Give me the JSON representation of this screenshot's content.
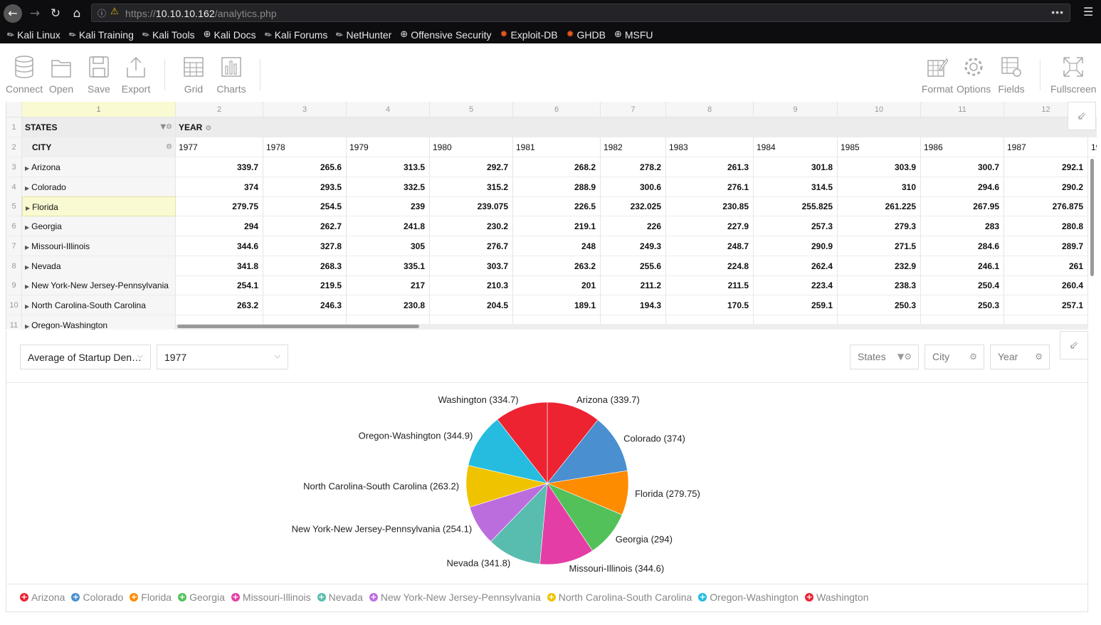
{
  "browser": {
    "url_prefix": "https://",
    "url_host": "10.10.10.162",
    "url_path": "/analytics.php",
    "bookmarks": [
      {
        "label": "Kali Linux",
        "icon": "kali-dragon-icon"
      },
      {
        "label": "Kali Training",
        "icon": "kali-dragon-icon"
      },
      {
        "label": "Kali Tools",
        "icon": "kali-dragon-icon"
      },
      {
        "label": "Kali Docs",
        "icon": "globe-icon"
      },
      {
        "label": "Kali Forums",
        "icon": "kali-dragon-icon"
      },
      {
        "label": "NetHunter",
        "icon": "kali-dragon-icon"
      },
      {
        "label": "Offensive Security",
        "icon": "globe-icon"
      },
      {
        "label": "Exploit-DB",
        "icon": "exploitdb-icon"
      },
      {
        "label": "GHDB",
        "icon": "exploitdb-icon"
      },
      {
        "label": "MSFU",
        "icon": "globe-icon"
      }
    ]
  },
  "toolbar": {
    "connect": "Connect",
    "open": "Open",
    "save": "Save",
    "export": "Export",
    "grid": "Grid",
    "charts": "Charts",
    "format": "Format",
    "options": "Options",
    "fields": "Fields",
    "fullscreen": "Fullscreen"
  },
  "grid": {
    "col_numbers": [
      "1",
      "2",
      "3",
      "4",
      "5",
      "6",
      "7",
      "8",
      "9",
      "10",
      "11",
      "12"
    ],
    "row_numbers": [
      "1",
      "2",
      "3",
      "4",
      "5",
      "6",
      "7",
      "8",
      "9",
      "10",
      "11"
    ],
    "states_header": "STATES",
    "year_header": "YEAR",
    "city_header": "CITY",
    "years": [
      "1977",
      "1978",
      "1979",
      "1980",
      "1981",
      "1982",
      "1983",
      "1984",
      "1985",
      "1986",
      "1987",
      "19"
    ],
    "rows": [
      {
        "label": "Arizona",
        "values": [
          "339.7",
          "265.6",
          "313.5",
          "292.7",
          "268.2",
          "278.2",
          "261.3",
          "301.8",
          "303.9",
          "300.7",
          "292.1"
        ]
      },
      {
        "label": "Colorado",
        "values": [
          "374",
          "293.5",
          "332.5",
          "315.2",
          "288.9",
          "300.6",
          "276.1",
          "314.5",
          "310",
          "294.6",
          "290.2"
        ]
      },
      {
        "label": "Florida",
        "values": [
          "279.75",
          "254.5",
          "239",
          "239.075",
          "226.5",
          "232.025",
          "230.85",
          "255.825",
          "261.225",
          "267.95",
          "276.875"
        ]
      },
      {
        "label": "Georgia",
        "values": [
          "294",
          "262.7",
          "241.8",
          "230.2",
          "219.1",
          "226",
          "227.9",
          "257.3",
          "279.3",
          "283",
          "280.8"
        ]
      },
      {
        "label": "Missouri-Illinois",
        "values": [
          "344.6",
          "327.8",
          "305",
          "276.7",
          "248",
          "249.3",
          "248.7",
          "290.9",
          "271.5",
          "284.6",
          "289.7"
        ]
      },
      {
        "label": "Nevada",
        "values": [
          "341.8",
          "268.3",
          "335.1",
          "303.7",
          "263.2",
          "255.6",
          "224.8",
          "262.4",
          "232.9",
          "246.1",
          "261"
        ]
      },
      {
        "label": "New York-New Jersey-Pennsylvania",
        "values": [
          "254.1",
          "219.5",
          "217",
          "210.3",
          "201",
          "211.2",
          "211.5",
          "223.4",
          "238.3",
          "250.4",
          "260.4"
        ]
      },
      {
        "label": "North Carolina-South Carolina",
        "values": [
          "263.2",
          "246.3",
          "230.8",
          "204.5",
          "189.1",
          "194.3",
          "170.5",
          "259.1",
          "250.3",
          "250.3",
          "257.1"
        ]
      },
      {
        "label": "Oregon-Washington",
        "values": []
      }
    ]
  },
  "chart_controls": {
    "measure_select": "Average of Startup Den…",
    "year_select": "1977",
    "states_btn": "States",
    "city_btn": "City",
    "year_btn": "Year"
  },
  "chart_data": {
    "type": "pie",
    "categories": [
      "Arizona",
      "Colorado",
      "Florida",
      "Georgia",
      "Missouri-Illinois",
      "Nevada",
      "New York-New Jersey-Pennsylvania",
      "North Carolina-South Carolina",
      "Oregon-Washington",
      "Washington"
    ],
    "values": [
      339.7,
      374,
      279.75,
      294,
      344.6,
      341.8,
      254.1,
      263.2,
      344.9,
      334.7
    ],
    "labels": [
      "Arizona (339.7)",
      "Colorado (374)",
      "Florida (279.75)",
      "Georgia (294)",
      "Missouri-Illinois (344.6)",
      "Nevada (341.8)",
      "New York-New Jersey-Pennsylvania (254.1)",
      "North Carolina-South Carolina (263.2)",
      "Oregon-Washington (344.9)",
      "Washington (334.7)"
    ],
    "colors": [
      "#ed2331",
      "#4a8fcf",
      "#fd8c01",
      "#52c15a",
      "#e43ea6",
      "#58bcae",
      "#bc6ddd",
      "#efc300",
      "#25bcdf",
      "#ed2331"
    ],
    "legend_placement": "bottom"
  }
}
